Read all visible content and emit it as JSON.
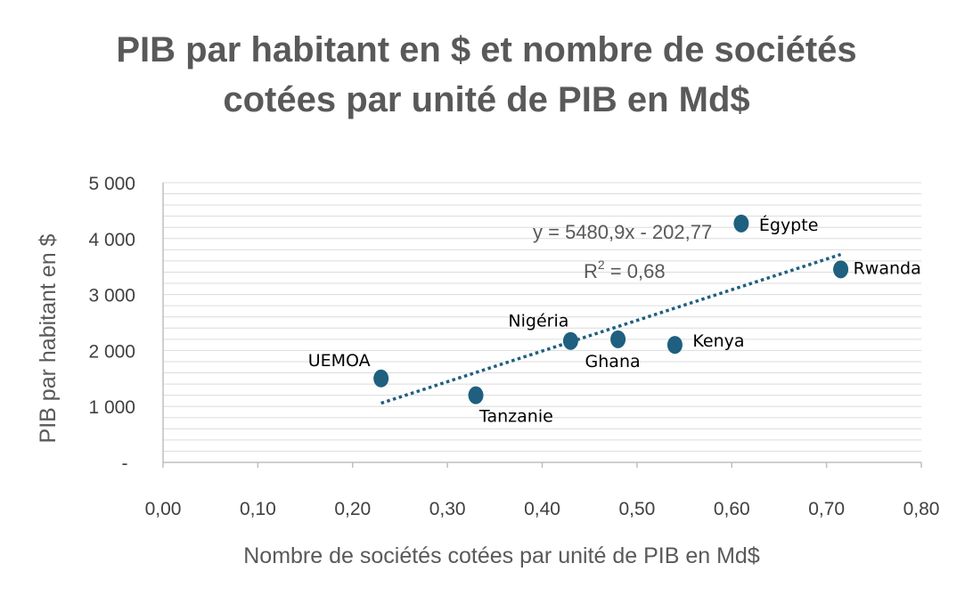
{
  "chart_data": {
    "type": "scatter",
    "title_lines": [
      "PIB par habitant en $ et nombre de sociétés",
      "cotées par unité de PIB en Md$"
    ],
    "xlabel": "Nombre de sociétés cotées par unité de PIB en Md$",
    "ylabel": "PIB par habitant en $",
    "xlim": [
      0,
      0.8
    ],
    "ylim": [
      0,
      5000
    ],
    "x_ticks": [
      0,
      0.1,
      0.2,
      0.3,
      0.4,
      0.5,
      0.6,
      0.7,
      0.8
    ],
    "x_tick_labels": [
      "0,00",
      "0,10",
      "0,20",
      "0,30",
      "0,40",
      "0,50",
      "0,60",
      "0,70",
      "0,80"
    ],
    "y_ticks": [
      0,
      1000,
      2000,
      3000,
      4000,
      5000
    ],
    "y_tick_labels": [
      "-",
      "1 000",
      "2 000",
      "3 000",
      "4 000",
      "5 000"
    ],
    "grid": true,
    "marker_color": "#1f5f7f",
    "trendline_color": "#1f5f7f",
    "points": [
      {
        "name": "UEMOA",
        "x": 0.23,
        "y": 1500
      },
      {
        "name": "Tanzanie",
        "x": 0.33,
        "y": 1200
      },
      {
        "name": "Nigéria",
        "x": 0.43,
        "y": 2170
      },
      {
        "name": "Ghana",
        "x": 0.48,
        "y": 2200
      },
      {
        "name": "Kenya",
        "x": 0.54,
        "y": 2100
      },
      {
        "name": "Égypte",
        "x": 0.61,
        "y": 4270
      },
      {
        "name": "Rwanda",
        "x": 0.715,
        "y": 3450
      }
    ],
    "trendline": {
      "slope": 5480.9,
      "intercept": -202.77,
      "x_range": [
        0.23,
        0.715
      ],
      "equation": "y = 5480,9x - 202,77",
      "r2_label": "R",
      "r2_sup": "2",
      "r2_value": " = 0,68"
    }
  }
}
